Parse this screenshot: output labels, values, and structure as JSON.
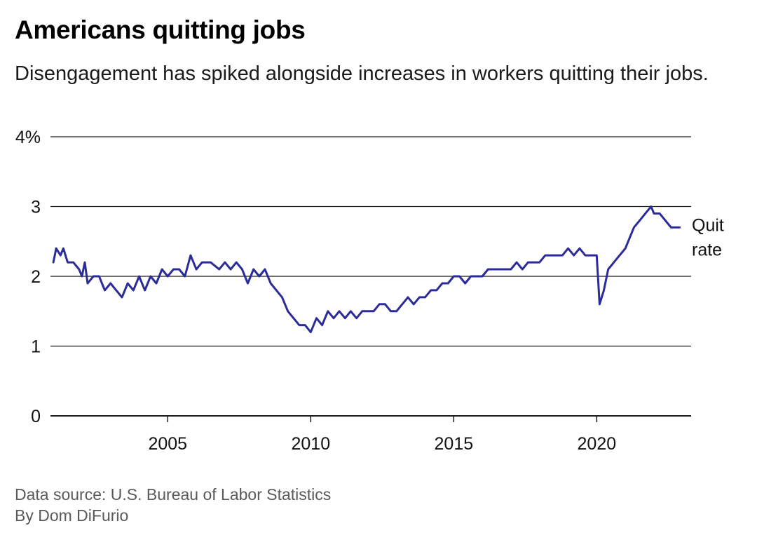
{
  "title": "Americans quitting jobs",
  "subtitle": "Disengagement has spiked alongside increases in workers quitting their jobs.",
  "footer": {
    "source": "Data source: U.S. Bureau of Labor Statistics",
    "byline": "By Dom DiFurio"
  },
  "colors": {
    "line": "#2b2b99",
    "grid": "#1a1a1a"
  },
  "chart_data": {
    "type": "line",
    "title": "Americans quitting jobs",
    "subtitle": "Disengagement has spiked alongside increases in workers quitting their jobs.",
    "xlabel": "",
    "ylabel": "",
    "ylim": [
      0,
      4
    ],
    "xlim": [
      2000.9,
      2023.3
    ],
    "y_ticks": [
      {
        "value": 0,
        "label": "0"
      },
      {
        "value": 1,
        "label": "1"
      },
      {
        "value": 2,
        "label": "2"
      },
      {
        "value": 3,
        "label": "3"
      },
      {
        "value": 4,
        "label": "4%"
      }
    ],
    "x_ticks": [
      {
        "value": 2005,
        "label": "2005"
      },
      {
        "value": 2010,
        "label": "2010"
      },
      {
        "value": 2015,
        "label": "2015"
      },
      {
        "value": 2020,
        "label": "2020"
      }
    ],
    "grid": true,
    "series": [
      {
        "name": "Quit rate",
        "label_lines": [
          "Quit",
          "rate"
        ],
        "x": [
          2001.0,
          2001.1,
          2001.25,
          2001.35,
          2001.5,
          2001.7,
          2001.9,
          2002.0,
          2002.1,
          2002.2,
          2002.4,
          2002.6,
          2002.8,
          2003.0,
          2003.2,
          2003.4,
          2003.6,
          2003.8,
          2004.0,
          2004.2,
          2004.4,
          2004.6,
          2004.8,
          2005.0,
          2005.2,
          2005.4,
          2005.6,
          2005.8,
          2006.0,
          2006.2,
          2006.5,
          2006.8,
          2007.0,
          2007.2,
          2007.4,
          2007.6,
          2007.8,
          2008.0,
          2008.2,
          2008.4,
          2008.6,
          2008.8,
          2009.0,
          2009.2,
          2009.4,
          2009.6,
          2009.8,
          2010.0,
          2010.2,
          2010.4,
          2010.6,
          2010.8,
          2011.0,
          2011.2,
          2011.4,
          2011.6,
          2011.8,
          2012.0,
          2012.2,
          2012.4,
          2012.6,
          2012.8,
          2013.0,
          2013.2,
          2013.4,
          2013.6,
          2013.8,
          2014.0,
          2014.2,
          2014.4,
          2014.6,
          2014.8,
          2015.0,
          2015.2,
          2015.4,
          2015.6,
          2015.8,
          2016.0,
          2016.2,
          2016.4,
          2016.6,
          2016.8,
          2017.0,
          2017.2,
          2017.4,
          2017.6,
          2017.8,
          2018.0,
          2018.2,
          2018.4,
          2018.6,
          2018.8,
          2019.0,
          2019.2,
          2019.4,
          2019.6,
          2019.8,
          2020.0,
          2020.1,
          2020.25,
          2020.4,
          2020.6,
          2020.8,
          2021.0,
          2021.1,
          2021.3,
          2021.5,
          2021.7,
          2021.9,
          2022.0,
          2022.2,
          2022.4,
          2022.6,
          2022.8,
          2022.9
        ],
        "values": [
          2.2,
          2.4,
          2.3,
          2.4,
          2.2,
          2.2,
          2.1,
          2.0,
          2.2,
          1.9,
          2.0,
          2.0,
          1.8,
          1.9,
          1.8,
          1.7,
          1.9,
          1.8,
          2.0,
          1.8,
          2.0,
          1.9,
          2.1,
          2.0,
          2.1,
          2.1,
          2.0,
          2.3,
          2.1,
          2.2,
          2.2,
          2.1,
          2.2,
          2.1,
          2.2,
          2.1,
          1.9,
          2.1,
          2.0,
          2.1,
          1.9,
          1.8,
          1.7,
          1.5,
          1.4,
          1.3,
          1.3,
          1.2,
          1.4,
          1.3,
          1.5,
          1.4,
          1.5,
          1.4,
          1.5,
          1.4,
          1.5,
          1.5,
          1.5,
          1.6,
          1.6,
          1.5,
          1.5,
          1.6,
          1.7,
          1.6,
          1.7,
          1.7,
          1.8,
          1.8,
          1.9,
          1.9,
          2.0,
          2.0,
          1.9,
          2.0,
          2.0,
          2.0,
          2.1,
          2.1,
          2.1,
          2.1,
          2.1,
          2.2,
          2.1,
          2.2,
          2.2,
          2.2,
          2.3,
          2.3,
          2.3,
          2.3,
          2.4,
          2.3,
          2.4,
          2.3,
          2.3,
          2.3,
          1.6,
          1.8,
          2.1,
          2.2,
          2.3,
          2.4,
          2.5,
          2.7,
          2.8,
          2.9,
          3.0,
          2.9,
          2.9,
          2.8,
          2.7,
          2.7,
          2.7
        ]
      }
    ]
  }
}
